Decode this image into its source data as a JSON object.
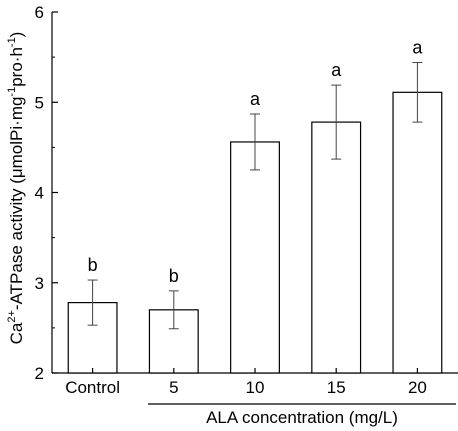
{
  "chart_data": {
    "type": "bar",
    "categories": [
      "Control",
      "5",
      "10",
      "15",
      "20"
    ],
    "values": [
      2.78,
      2.7,
      4.56,
      4.78,
      5.11
    ],
    "errors": [
      0.25,
      0.21,
      0.31,
      0.41,
      0.33
    ],
    "significance": [
      "b",
      "b",
      "a",
      "a",
      "a"
    ],
    "ylim": [
      2,
      6
    ],
    "yticks": [
      2,
      3,
      4,
      5,
      6
    ],
    "ytick_labels": [
      "2",
      "3",
      "4",
      "5",
      "6"
    ],
    "xlabel": "ALA concentration (mg/L)",
    "ylabel": {
      "prefix": "Ca",
      "sup1": "2+",
      "mid": "-ATPase activity (μmolPi·mg",
      "sup2": "-1",
      "mid2": "pro·h",
      "sup3": "-1",
      "suffix": ")"
    },
    "bar_color": "#ffffff",
    "edge_color": "#000000",
    "grid": false
  }
}
